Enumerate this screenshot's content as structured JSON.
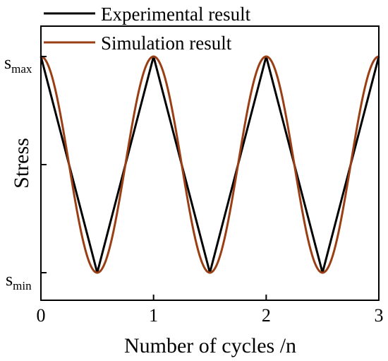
{
  "chart_data": {
    "type": "line",
    "xlabel": "Number of cycles /n",
    "ylabel": "Stress",
    "xlim": [
      0,
      3
    ],
    "ylim": [
      0,
      1
    ],
    "x_ticks": [
      "0",
      "1",
      "2",
      "3"
    ],
    "y_tick_labels": {
      "max": {
        "main": "s",
        "sub": "max"
      },
      "min": {
        "main": "s",
        "sub": "min"
      }
    },
    "grid": false,
    "legend_position": "top-left",
    "series": [
      {
        "name": "Experimental result",
        "color": "#000000",
        "shape": "triangle",
        "x": [
          0,
          0.5,
          1,
          1.5,
          2,
          2.5,
          3
        ],
        "y": [
          1,
          0,
          1,
          0,
          1,
          0,
          1
        ]
      },
      {
        "name": "Simulation result",
        "color": "#9a3f14",
        "shape": "sine",
        "x": [
          0,
          0.25,
          0.5,
          0.75,
          1,
          1.25,
          1.5,
          1.75,
          2,
          2.25,
          2.5,
          2.75,
          3
        ],
        "y": [
          1,
          0.5,
          0,
          0.5,
          1,
          0.5,
          0,
          0.5,
          1,
          0.5,
          0,
          0.5,
          1
        ]
      }
    ]
  }
}
